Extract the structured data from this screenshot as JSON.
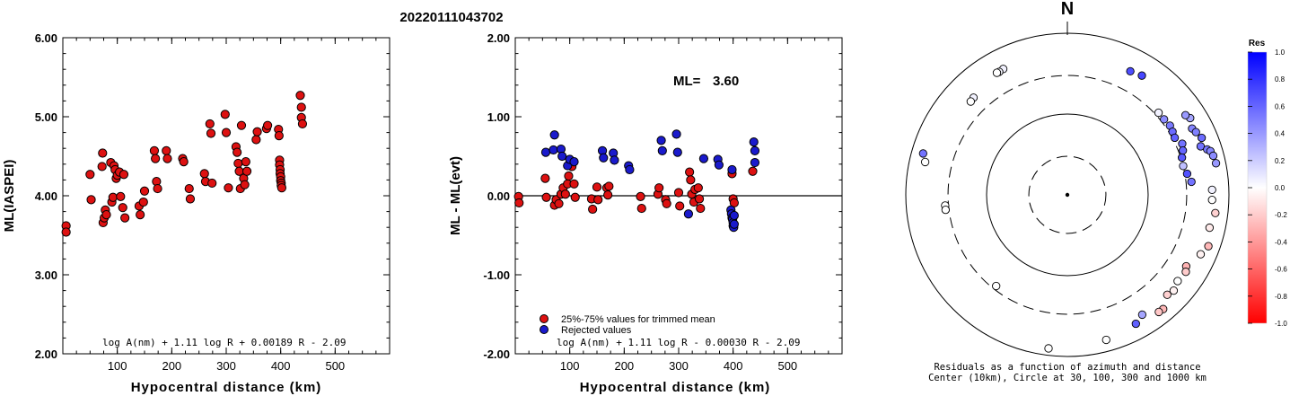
{
  "title": "20220111043702",
  "chart_data": [
    {
      "type": "scatter",
      "xlabel": "Hypocentral distance (km)",
      "ylabel": "ML(IASPEI)",
      "xlim": [
        0,
        600
      ],
      "ylim": [
        2.0,
        6.0
      ],
      "x_ticks": [
        "100",
        "200",
        "300",
        "400",
        "500"
      ],
      "y_ticks": [
        "2.00",
        "3.00",
        "4.00",
        "5.00",
        "6.00"
      ],
      "annotation": "log A(nm) + 1.11 log R + 0.00189 R - 2.09",
      "series": [
        {
          "color": "#dd1111",
          "points": [
            [
              6,
              3.62
            ],
            [
              6,
              3.54
            ],
            [
              50,
              4.27
            ],
            [
              52,
              3.95
            ],
            [
              72,
              4.37
            ],
            [
              73,
              4.54
            ],
            [
              74,
              3.66
            ],
            [
              76,
              3.72
            ],
            [
              78,
              3.82
            ],
            [
              80,
              3.76
            ],
            [
              88,
              4.42
            ],
            [
              90,
              3.92
            ],
            [
              92,
              3.98
            ],
            [
              94,
              4.38
            ],
            [
              96,
              4.33
            ],
            [
              98,
              4.22
            ],
            [
              100,
              4.26
            ],
            [
              104,
              4.3
            ],
            [
              106,
              3.99
            ],
            [
              110,
              3.85
            ],
            [
              112,
              4.27
            ],
            [
              114,
              3.72
            ],
            [
              140,
              3.87
            ],
            [
              142,
              3.76
            ],
            [
              148,
              3.92
            ],
            [
              150,
              4.06
            ],
            [
              168,
              4.57
            ],
            [
              170,
              4.47
            ],
            [
              172,
              4.18
            ],
            [
              174,
              4.09
            ],
            [
              190,
              4.57
            ],
            [
              192,
              4.47
            ],
            [
              220,
              4.47
            ],
            [
              222,
              4.43
            ],
            [
              232,
              4.09
            ],
            [
              234,
              3.96
            ],
            [
              260,
              4.28
            ],
            [
              262,
              4.18
            ],
            [
              270,
              4.91
            ],
            [
              272,
              4.79
            ],
            [
              274,
              4.16
            ],
            [
              298,
              5.03
            ],
            [
              300,
              4.8
            ],
            [
              304,
              4.1
            ],
            [
              318,
              4.62
            ],
            [
              320,
              4.55
            ],
            [
              322,
              4.41
            ],
            [
              324,
              4.31
            ],
            [
              326,
              4.09
            ],
            [
              328,
              4.89
            ],
            [
              332,
              4.22
            ],
            [
              334,
              4.14
            ],
            [
              336,
              4.43
            ],
            [
              338,
              4.31
            ],
            [
              355,
              4.71
            ],
            [
              357,
              4.81
            ],
            [
              374,
              4.85
            ],
            [
              376,
              4.89
            ],
            [
              396,
              4.84
            ],
            [
              397,
              4.76
            ],
            [
              398,
              4.45
            ],
            [
              398,
              4.39
            ],
            [
              399,
              4.33
            ],
            [
              399,
              4.28
            ],
            [
              400,
              4.24
            ],
            [
              400,
              4.19
            ],
            [
              401,
              4.16
            ],
            [
              401,
              4.13
            ],
            [
              402,
              4.1
            ],
            [
              436,
              5.27
            ],
            [
              438,
              5.12
            ],
            [
              438,
              4.99
            ],
            [
              440,
              4.91
            ]
          ]
        }
      ]
    },
    {
      "type": "scatter",
      "xlabel": "Hypocentral distance (km)",
      "ylabel": "ML - ML(evt)",
      "xlim": [
        0,
        600
      ],
      "ylim": [
        -2.0,
        2.0
      ],
      "x_ticks": [
        "100",
        "200",
        "300",
        "400",
        "500"
      ],
      "y_ticks": [
        "-2.00",
        "-1.00",
        "0.00",
        "1.00",
        "2.00"
      ],
      "ml_label": "ML=",
      "ml_value": "3.60",
      "annotation": "log A(nm) + 1.11 log R - 0.00030 R - 2.09",
      "legend": [
        {
          "label": "25%-75% values for trimmed mean",
          "color": "#dd1111"
        },
        {
          "label": "Rejected values",
          "color": "#1a1acc"
        }
      ],
      "series": [
        {
          "color": "#dd1111",
          "points": [
            [
              6,
              -0.01
            ],
            [
              7,
              -0.09
            ],
            [
              55,
              0.22
            ],
            [
              57,
              -0.02
            ],
            [
              72,
              -0.12
            ],
            [
              75,
              -0.05
            ],
            [
              80,
              -0.1
            ],
            [
              84,
              0.02
            ],
            [
              88,
              0.1
            ],
            [
              92,
              0.02
            ],
            [
              96,
              0.15
            ],
            [
              98,
              0.25
            ],
            [
              104,
              0.37
            ],
            [
              108,
              0.15
            ],
            [
              110,
              -0.02
            ],
            [
              140,
              -0.04
            ],
            [
              142,
              -0.17
            ],
            [
              150,
              0.11
            ],
            [
              152,
              -0.05
            ],
            [
              168,
              0.1
            ],
            [
              170,
              0.01
            ],
            [
              172,
              0.12
            ],
            [
              230,
              -0.01
            ],
            [
              232,
              -0.16
            ],
            [
              262,
              0.02
            ],
            [
              264,
              0.1
            ],
            [
              276,
              -0.05
            ],
            [
              278,
              -0.1
            ],
            [
              300,
              0.04
            ],
            [
              302,
              -0.13
            ],
            [
              320,
              0.3
            ],
            [
              322,
              0.2
            ],
            [
              324,
              0.02
            ],
            [
              328,
              -0.08
            ],
            [
              330,
              0.08
            ],
            [
              336,
              0.1
            ],
            [
              338,
              -0.04
            ],
            [
              340,
              -0.16
            ],
            [
              398,
              0.28
            ],
            [
              400,
              -0.04
            ],
            [
              402,
              -0.09
            ],
            [
              436,
              0.31
            ]
          ]
        },
        {
          "color": "#1a1acc",
          "points": [
            [
              56,
              0.55
            ],
            [
              70,
              0.58
            ],
            [
              72,
              0.77
            ],
            [
              84,
              0.59
            ],
            [
              86,
              0.5
            ],
            [
              96,
              0.38
            ],
            [
              100,
              0.46
            ],
            [
              108,
              0.43
            ],
            [
              160,
              0.57
            ],
            [
              162,
              0.48
            ],
            [
              180,
              0.54
            ],
            [
              182,
              0.45
            ],
            [
              208,
              0.38
            ],
            [
              210,
              0.33
            ],
            [
              268,
              0.7
            ],
            [
              270,
              0.57
            ],
            [
              296,
              0.78
            ],
            [
              298,
              0.55
            ],
            [
              318,
              -0.23
            ],
            [
              346,
              0.47
            ],
            [
              372,
              0.46
            ],
            [
              374,
              0.39
            ],
            [
              398,
              0.33
            ],
            [
              396,
              -0.18
            ],
            [
              397,
              -0.23
            ],
            [
              398,
              -0.28
            ],
            [
              399,
              -0.3
            ],
            [
              400,
              -0.34
            ],
            [
              400,
              -0.38
            ],
            [
              401,
              -0.4
            ],
            [
              402,
              -0.36
            ],
            [
              402,
              -0.25
            ],
            [
              438,
              0.68
            ],
            [
              440,
              0.57
            ],
            [
              440,
              0.42
            ]
          ]
        }
      ]
    },
    {
      "type": "polar-scatter",
      "north_label": "N",
      "caption": "Residuals as a function of azimuth and distance",
      "caption2": "Center (10km), Circle at 30, 100, 300 and 1000 km",
      "colorbar_title": "Res",
      "colorbar_ticks": [
        "1.0",
        "0.8",
        "0.6",
        "0.4",
        "0.2",
        "0.0",
        "-0.2",
        "-0.4",
        "-0.6",
        "-0.8",
        "-1.0"
      ],
      "colorbar_range": [
        -1.0,
        1.0
      ],
      "rings_km": [
        30,
        100,
        300,
        1000
      ],
      "points": [
        {
          "az": 333,
          "dist": 560,
          "res": 0.05
        },
        {
          "az": 331,
          "dist": 550,
          "res": 0.03
        },
        {
          "az": 330,
          "dist": 555,
          "res": 0.0
        },
        {
          "az": 316,
          "dist": 470,
          "res": 0.05
        },
        {
          "az": 314,
          "dist": 460,
          "res": 0.0
        },
        {
          "az": 286,
          "dist": 720,
          "res": 0.55
        },
        {
          "az": 283,
          "dist": 640,
          "res": 0.0
        },
        {
          "az": 265,
          "dist": 330,
          "res": 0.0
        },
        {
          "az": 263,
          "dist": 330,
          "res": 0.0
        },
        {
          "az": 218,
          "dist": 270,
          "res": 0.0
        },
        {
          "az": 187,
          "dist": 820,
          "res": 0.0
        },
        {
          "az": 32,
          "dist": 550,
          "res": 0.72
        },
        {
          "az": 27,
          "dist": 520,
          "res": 0.7
        },
        {
          "az": 58,
          "dist": 620,
          "res": 0.35
        },
        {
          "az": 56,
          "dist": 580,
          "res": 0.4
        },
        {
          "az": 62,
          "dist": 560,
          "res": 0.48
        },
        {
          "az": 64,
          "dist": 590,
          "res": 0.5
        },
        {
          "az": 67,
          "dist": 640,
          "res": 0.58
        },
        {
          "az": 70,
          "dist": 570,
          "res": 0.55
        },
        {
          "az": 72,
          "dist": 660,
          "res": 0.52
        },
        {
          "az": 73,
          "dist": 710,
          "res": 0.48
        },
        {
          "az": 75,
          "dist": 740,
          "res": 0.45
        },
        {
          "az": 78,
          "dist": 760,
          "res": 0.4
        },
        {
          "az": 48,
          "dist": 330,
          "res": 0.05
        },
        {
          "az": 52,
          "dist": 330,
          "res": 0.45
        },
        {
          "az": 56,
          "dist": 340,
          "res": 0.52
        },
        {
          "az": 59,
          "dist": 330,
          "res": 0.58
        },
        {
          "az": 62,
          "dist": 320,
          "res": 0.62
        },
        {
          "az": 66,
          "dist": 360,
          "res": 0.55
        },
        {
          "az": 69,
          "dist": 340,
          "res": 0.6
        },
        {
          "az": 72,
          "dist": 310,
          "res": 0.65
        },
        {
          "az": 76,
          "dist": 300,
          "res": 0.25
        },
        {
          "az": 80,
          "dist": 320,
          "res": 0.68
        },
        {
          "az": 84,
          "dist": 350,
          "res": 0.55
        },
        {
          "az": 88,
          "dist": 620,
          "res": 0.05
        },
        {
          "az": 92,
          "dist": 620,
          "res": 0.0
        },
        {
          "az": 97,
          "dist": 700,
          "res": -0.18
        },
        {
          "az": 103,
          "dist": 640,
          "res": -0.08
        },
        {
          "az": 110,
          "dist": 720,
          "res": -0.28
        },
        {
          "az": 114,
          "dist": 640,
          "res": -0.05
        },
        {
          "az": 121,
          "dist": 520,
          "res": -0.3
        },
        {
          "az": 123,
          "dist": 560,
          "res": -0.2
        },
        {
          "az": 128,
          "dist": 540,
          "res": 0.0
        },
        {
          "az": 132,
          "dist": 590,
          "res": -0.05
        },
        {
          "az": 135,
          "dist": 560,
          "res": -0.18
        },
        {
          "az": 140,
          "dist": 700,
          "res": -0.28
        },
        {
          "az": 142,
          "dist": 690,
          "res": -0.22
        },
        {
          "az": 148,
          "dist": 560,
          "res": 0.35
        },
        {
          "az": 152,
          "dist": 640,
          "res": 0.62
        },
        {
          "az": 165,
          "dist": 720,
          "res": 0.0
        }
      ]
    }
  ]
}
